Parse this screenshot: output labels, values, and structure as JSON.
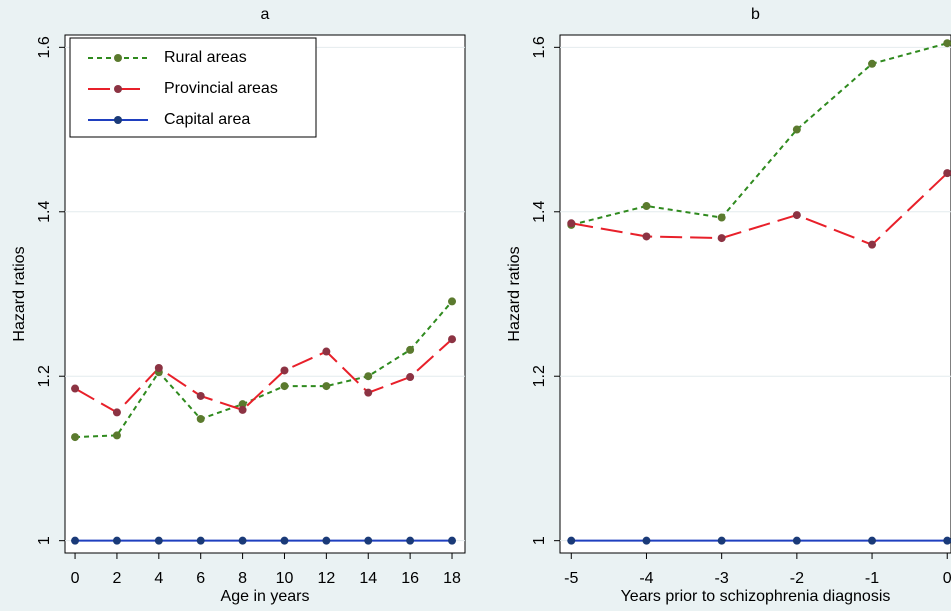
{
  "chart_data": [
    {
      "type": "line",
      "title": "a",
      "x_label": "Age in years",
      "y_label": "Hazard ratios",
      "x": [
        0,
        2,
        4,
        6,
        8,
        10,
        12,
        14,
        16,
        18
      ],
      "xlim": [
        -0.48,
        18.62
      ],
      "xticks": [
        0,
        2,
        4,
        6,
        8,
        10,
        12,
        14,
        16,
        18
      ],
      "ylim": [
        0.985,
        1.615
      ],
      "yticks": [
        1,
        1.2,
        1.4,
        1.6
      ],
      "grid": true,
      "legend": "top-left",
      "series": [
        {
          "name": "Rural areas",
          "color": "#2f8a1e",
          "marker_color": "#5b7a2e",
          "dash": "short",
          "values": [
            1.126,
            1.128,
            1.205,
            1.148,
            1.166,
            1.188,
            1.188,
            1.2,
            1.232,
            1.291
          ]
        },
        {
          "name": "Provincial areas",
          "color": "#e8202a",
          "marker_color": "#8c3343",
          "dash": "long",
          "values": [
            1.185,
            1.156,
            1.21,
            1.176,
            1.159,
            1.207,
            1.23,
            1.18,
            1.199,
            1.245
          ]
        },
        {
          "name": "Capital area",
          "color": "#1f3fbf",
          "marker_color": "#1a3a78",
          "dash": "solid",
          "values": [
            1,
            1,
            1,
            1,
            1,
            1,
            1,
            1,
            1,
            1
          ]
        }
      ]
    },
    {
      "type": "line",
      "title": "b",
      "x_label": "Years prior to schizophrenia diagnosis",
      "y_label": "Hazard ratios",
      "x": [
        -5,
        -4,
        -3,
        -2,
        -1,
        0
      ],
      "xlim": [
        -5.15,
        0.05
      ],
      "xticks": [
        -5,
        -4,
        -3,
        -2,
        -1,
        0
      ],
      "ylim": [
        0.985,
        1.615
      ],
      "yticks": [
        1,
        1.2,
        1.4,
        1.6
      ],
      "grid": true,
      "series": [
        {
          "name": "Rural areas",
          "color": "#2f8a1e",
          "marker_color": "#5b7a2e",
          "dash": "short",
          "values": [
            1.384,
            1.407,
            1.393,
            1.5,
            1.58,
            1.605
          ]
        },
        {
          "name": "Provincial areas",
          "color": "#e8202a",
          "marker_color": "#8c3343",
          "dash": "long",
          "values": [
            1.386,
            1.37,
            1.368,
            1.396,
            1.36,
            1.447
          ]
        },
        {
          "name": "Capital area",
          "color": "#1f3fbf",
          "marker_color": "#1a3a78",
          "dash": "solid",
          "values": [
            1,
            1,
            1,
            1,
            1,
            1
          ]
        }
      ]
    }
  ]
}
